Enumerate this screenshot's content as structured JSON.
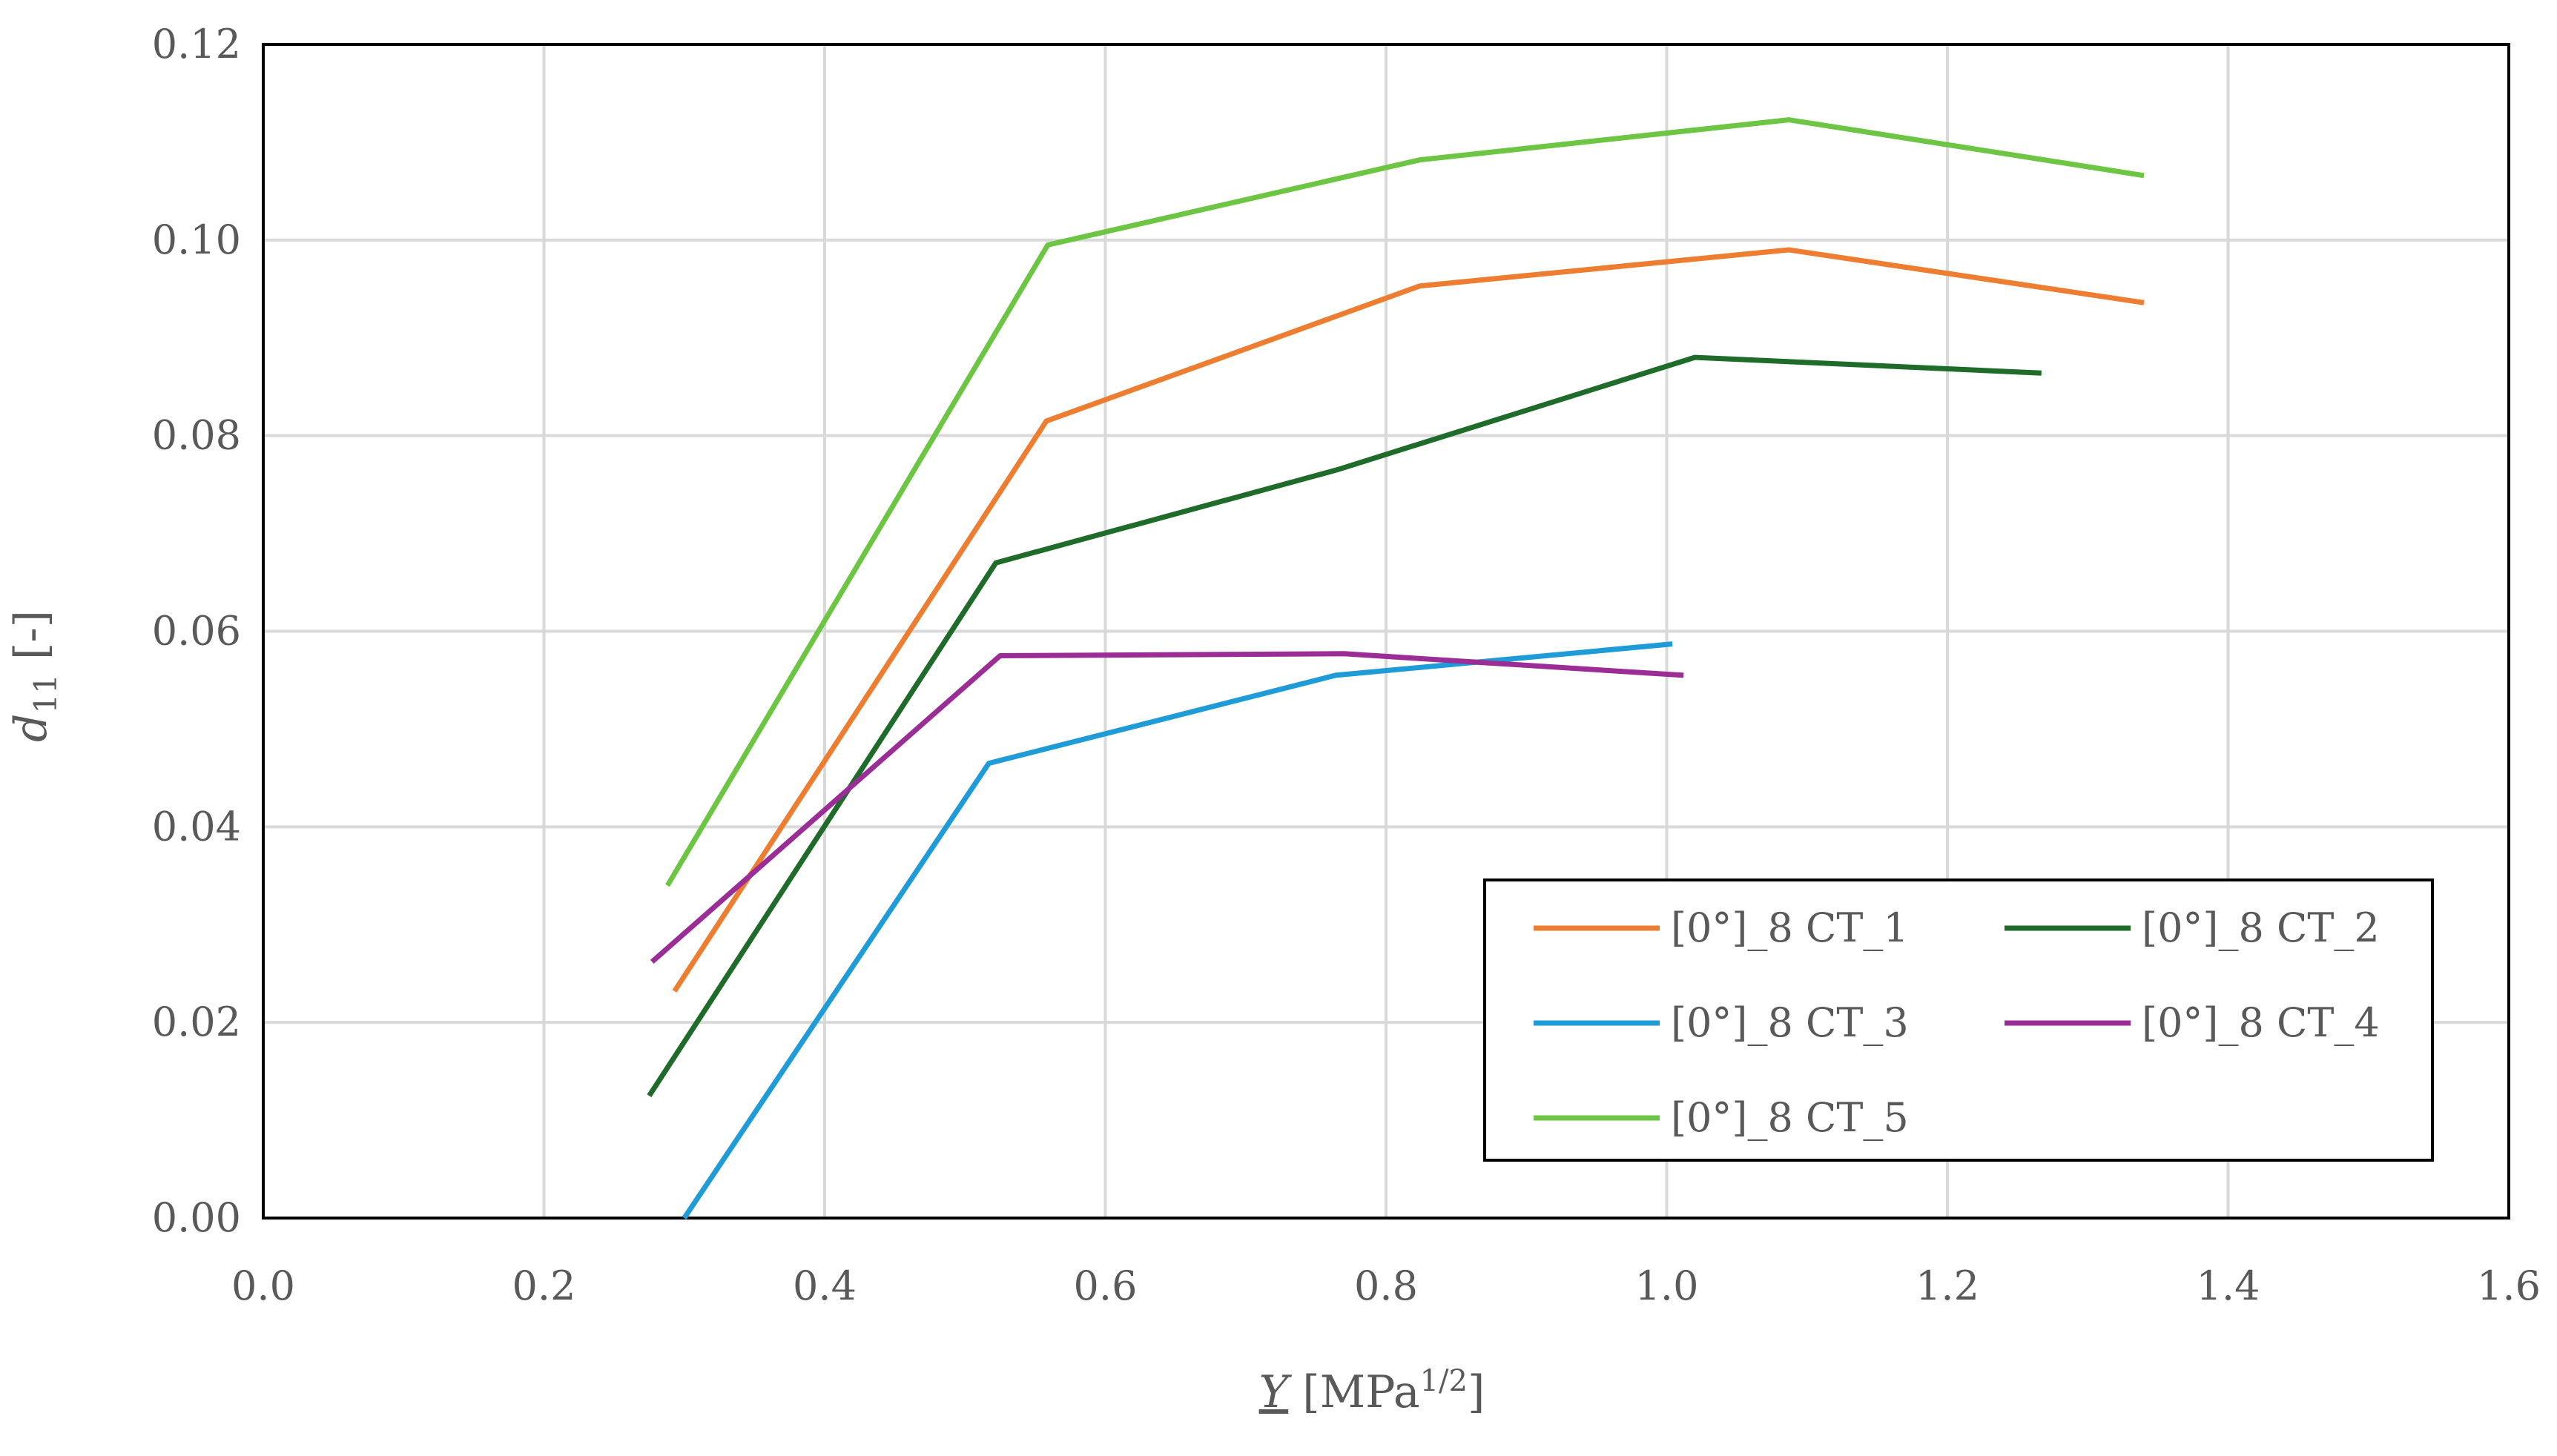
{
  "chart_data": {
    "type": "line",
    "title": "",
    "xlabel": {
      "symbol": "Y",
      "unit_prefix": "[MPa",
      "unit_exp": "1/2",
      "unit_suffix": "]"
    },
    "ylabel": {
      "symbol": "d",
      "subscript": "11",
      "unit": "[-]"
    },
    "xlim": [
      0,
      1.6
    ],
    "ylim": [
      0,
      0.12
    ],
    "x_ticks": [
      "0.0",
      "0.2",
      "0.4",
      "0.6",
      "0.8",
      "1.0",
      "1.2",
      "1.4",
      "1.6"
    ],
    "y_ticks": [
      "0.00",
      "0.02",
      "0.04",
      "0.06",
      "0.08",
      "0.10",
      "0.12"
    ],
    "grid": true,
    "legend_position": "bottom-right",
    "series": [
      {
        "name": "[0°]_8 CT_1",
        "color": "#ED7D31",
        "x": [
          0.293,
          0.558,
          0.824,
          1.087,
          1.34
        ],
        "y": [
          0.0232,
          0.0815,
          0.0953,
          0.099,
          0.0936
        ]
      },
      {
        "name": "[0°]_8 CT_2",
        "color": "#1E6B2A",
        "x": [
          0.275,
          0.522,
          0.765,
          1.02,
          1.267
        ],
        "y": [
          0.0125,
          0.067,
          0.0765,
          0.088,
          0.0864
        ]
      },
      {
        "name": "[0°]_8 CT_3",
        "color": "#1F9BD7",
        "x": [
          0.3,
          0.517,
          0.764,
          1.004
        ],
        "y": [
          0.0,
          0.0465,
          0.0555,
          0.0587
        ]
      },
      {
        "name": "[0°]_8 CT_4",
        "color": "#9B2D97",
        "x": [
          0.277,
          0.525,
          0.77,
          1.012
        ],
        "y": [
          0.0262,
          0.0575,
          0.0577,
          0.0555
        ]
      },
      {
        "name": "[0°]_8 CT_5",
        "color": "#6CC644",
        "x": [
          0.288,
          0.559,
          0.824,
          1.087,
          1.34
        ],
        "y": [
          0.034,
          0.0995,
          0.1082,
          0.1123,
          0.1066
        ]
      }
    ]
  }
}
